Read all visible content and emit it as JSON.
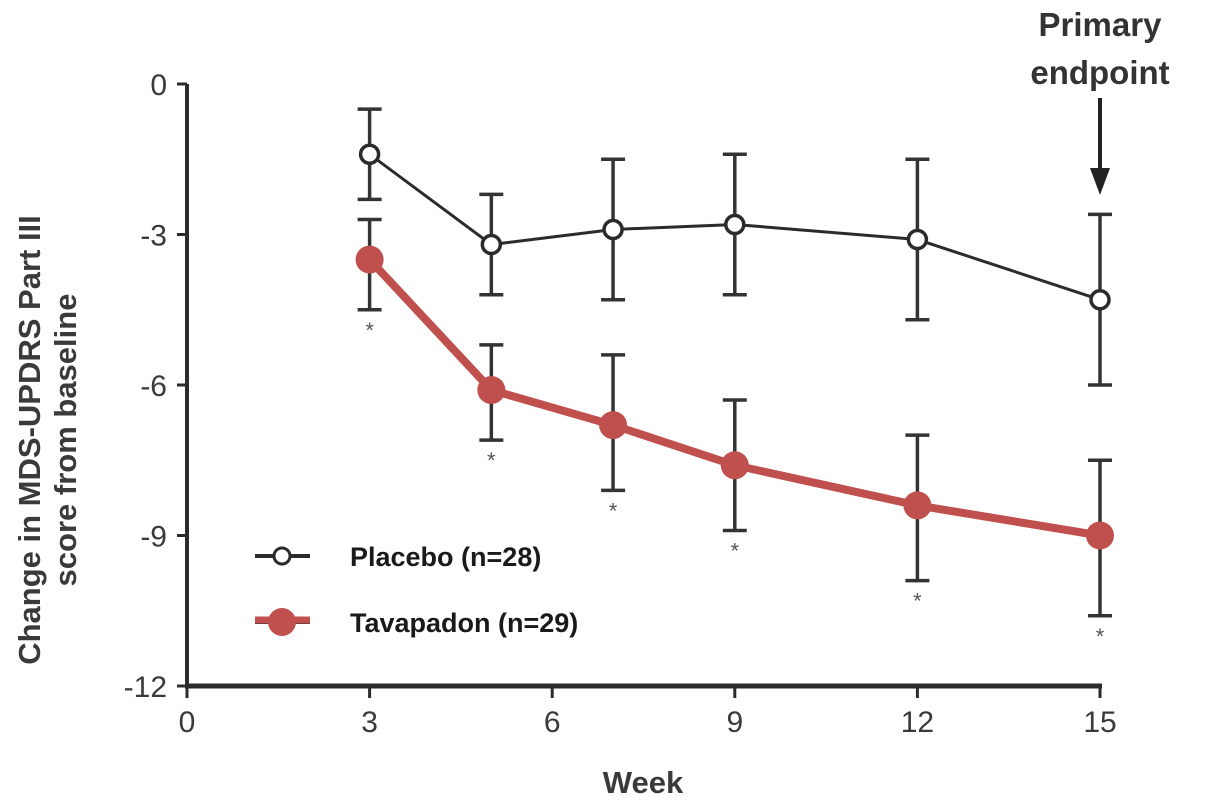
{
  "chart_data": {
    "type": "line",
    "title": "",
    "xlabel": "Week",
    "ylabel_lines": [
      "Change in MDS-UPDRS Part III",
      "score from baseline"
    ],
    "xlim": [
      0,
      15
    ],
    "ylim": [
      -12,
      0
    ],
    "xticks": [
      "0",
      "3",
      "6",
      "9",
      "12",
      "15"
    ],
    "xtick_values": [
      0,
      3,
      6,
      9,
      12,
      15
    ],
    "yticks": [
      "0",
      "-3",
      "-6",
      "-9",
      "-12"
    ],
    "ytick_values": [
      0,
      -3,
      -6,
      -9,
      -12
    ],
    "grid": false,
    "legend_position": "bottom-left",
    "series": [
      {
        "name": "Placebo (n=28)",
        "color": "#2b2b2b",
        "marker": "open-circle",
        "x": [
          3,
          5,
          7,
          9,
          12,
          15
        ],
        "y": [
          -1.4,
          -3.2,
          -2.9,
          -2.8,
          -3.1,
          -4.3
        ],
        "err_low": [
          -2.3,
          -4.2,
          -4.3,
          -4.2,
          -4.7,
          -6.0
        ],
        "err_high": [
          -0.5,
          -2.2,
          -1.5,
          -1.4,
          -1.5,
          -2.6
        ]
      },
      {
        "name": "Tavapadon (n=29)",
        "color": "#c0504d",
        "marker": "filled-circle",
        "x": [
          3,
          5,
          7,
          9,
          12,
          15
        ],
        "y": [
          -3.5,
          -6.1,
          -6.8,
          -7.6,
          -8.4,
          -9.0
        ],
        "err_low": [
          -4.5,
          -7.1,
          -8.1,
          -8.9,
          -9.9,
          -10.6
        ],
        "err_high": [
          -2.7,
          -5.2,
          -5.4,
          -6.3,
          -7.0,
          -7.5
        ],
        "significance": [
          "*",
          "*",
          "*",
          "*",
          "*",
          "*"
        ]
      }
    ],
    "annotations": [
      {
        "text_lines": [
          "Primary",
          "endpoint"
        ],
        "x": 15,
        "arrow": "down"
      }
    ]
  }
}
